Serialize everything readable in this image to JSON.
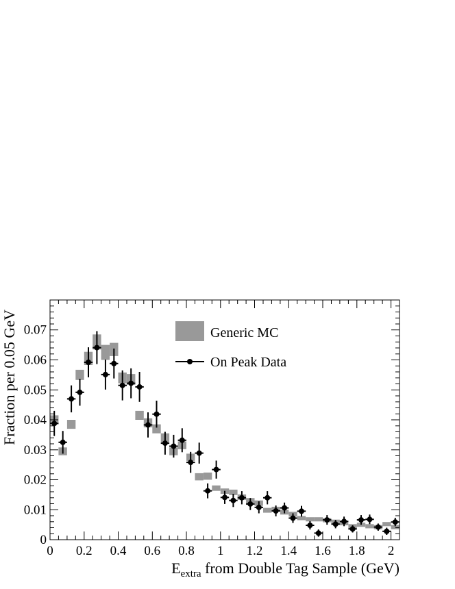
{
  "chart_data": {
    "type": "scatter",
    "xlabel_main": "E",
    "xlabel_sub": "extra",
    "xlabel_rest": " from Double Tag Sample (GeV)",
    "ylabel": "Fraction per 0.05 GeV",
    "xlim": [
      0,
      2.05
    ],
    "ylim": [
      0,
      0.08
    ],
    "x_ticks": [
      0,
      0.2,
      0.4,
      0.6,
      0.8,
      1,
      1.2,
      1.4,
      1.6,
      1.8,
      2
    ],
    "x_tick_labels": [
      "0",
      "0.2",
      "0.4",
      "0.6",
      "0.8",
      "1",
      "1.2",
      "1.4",
      "1.6",
      "1.8",
      "2"
    ],
    "y_ticks": [
      0,
      0.01,
      0.02,
      0.03,
      0.04,
      0.05,
      0.06,
      0.07
    ],
    "y_tick_labels": [
      "0",
      "0.01",
      "0.02",
      "0.03",
      "0.04",
      "0.05",
      "0.06",
      "0.07"
    ],
    "grid": false,
    "legend_position": "top-center",
    "series": [
      {
        "name": "Generic MC",
        "style": "band",
        "color": "#999999",
        "x": [
          0.025,
          0.075,
          0.125,
          0.175,
          0.225,
          0.275,
          0.325,
          0.375,
          0.425,
          0.475,
          0.525,
          0.575,
          0.625,
          0.675,
          0.725,
          0.775,
          0.825,
          0.875,
          0.925,
          0.975,
          1.025,
          1.075,
          1.125,
          1.175,
          1.225,
          1.275,
          1.325,
          1.375,
          1.425,
          1.475,
          1.525,
          1.575,
          1.625,
          1.675,
          1.725,
          1.775,
          1.825,
          1.875,
          1.925,
          1.975,
          2.025
        ],
        "y": [
          0.04,
          0.0295,
          0.0385,
          0.055,
          0.0605,
          0.066,
          0.0625,
          0.0635,
          0.054,
          0.0535,
          0.0415,
          0.039,
          0.037,
          0.034,
          0.0295,
          0.0315,
          0.0275,
          0.021,
          0.0212,
          0.0172,
          0.0162,
          0.0158,
          0.0142,
          0.013,
          0.0122,
          0.0098,
          0.0102,
          0.0092,
          0.0085,
          0.0072,
          0.0068,
          0.0068,
          0.0065,
          0.006,
          0.0055,
          0.0045,
          0.005,
          0.0045,
          0.0042,
          0.0052,
          0.0042
        ],
        "err": [
          0.0015,
          0.0013,
          0.0015,
          0.0017,
          0.0022,
          0.0025,
          0.0025,
          0.0022,
          0.0018,
          0.0018,
          0.0015,
          0.0015,
          0.0015,
          0.0015,
          0.0013,
          0.0013,
          0.0012,
          0.0012,
          0.0012,
          0.0009,
          0.0009,
          0.0009,
          0.0009,
          0.0009,
          0.0009,
          0.0008,
          0.0008,
          0.0008,
          0.0008,
          0.0007,
          0.0007,
          0.0007,
          0.0007,
          0.0007,
          0.0007,
          0.0007,
          0.0007,
          0.0007,
          0.0007,
          0.0007,
          0.0007
        ]
      },
      {
        "name": "On Peak Data",
        "style": "points",
        "color": "#000000",
        "x": [
          0.025,
          0.075,
          0.125,
          0.175,
          0.225,
          0.275,
          0.325,
          0.375,
          0.425,
          0.475,
          0.525,
          0.575,
          0.625,
          0.675,
          0.725,
          0.775,
          0.825,
          0.875,
          0.925,
          0.975,
          1.025,
          1.075,
          1.125,
          1.175,
          1.225,
          1.275,
          1.325,
          1.375,
          1.425,
          1.475,
          1.525,
          1.575,
          1.625,
          1.675,
          1.725,
          1.775,
          1.825,
          1.875,
          1.925,
          1.975,
          2.025
        ],
        "y": [
          0.0388,
          0.0325,
          0.047,
          0.0492,
          0.0592,
          0.0641,
          0.0551,
          0.0588,
          0.0515,
          0.0522,
          0.051,
          0.0383,
          0.0419,
          0.0322,
          0.0312,
          0.0332,
          0.0258,
          0.0289,
          0.0163,
          0.0234,
          0.0141,
          0.0131,
          0.014,
          0.0119,
          0.0108,
          0.014,
          0.0096,
          0.0106,
          0.0072,
          0.0095,
          0.0048,
          0.0022,
          0.0066,
          0.0052,
          0.0061,
          0.0036,
          0.0066,
          0.0068,
          0.0042,
          0.0028,
          0.0059
        ],
        "err": [
          0.0042,
          0.0038,
          0.0045,
          0.0045,
          0.005,
          0.0055,
          0.005,
          0.005,
          0.005,
          0.005,
          0.005,
          0.0042,
          0.0045,
          0.0038,
          0.0038,
          0.004,
          0.0035,
          0.0035,
          0.0025,
          0.003,
          0.0022,
          0.0022,
          0.0022,
          0.002,
          0.002,
          0.0022,
          0.0018,
          0.0018,
          0.0016,
          0.0018,
          0.0014,
          0.0012,
          0.0016,
          0.0014,
          0.0016,
          0.0012,
          0.0016,
          0.0016,
          0.0012,
          0.0012,
          0.0014
        ]
      }
    ]
  }
}
